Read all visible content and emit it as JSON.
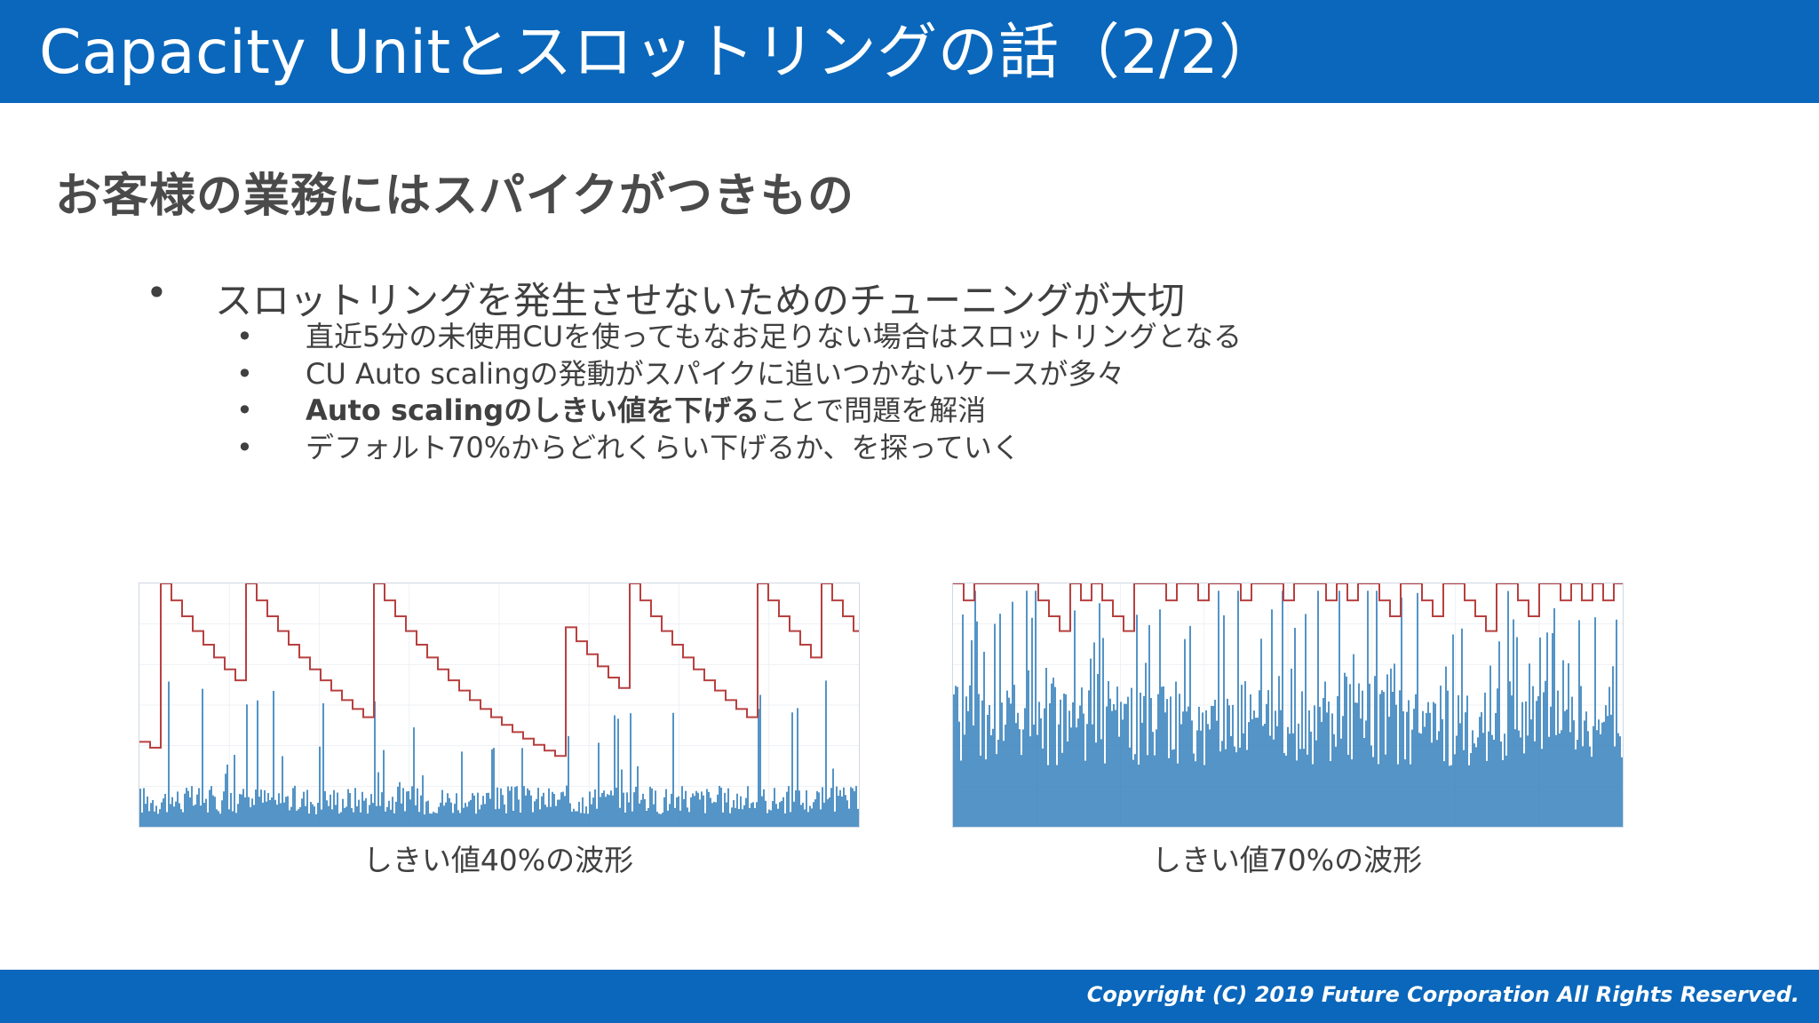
{
  "header": {
    "title": "Capacity Unitとスロットリングの話（2/2）"
  },
  "subtitle": "お客様の業務にはスパイクがつきもの",
  "bullet_main": {
    "marker": "•",
    "text": "スロットリングを発生させないためのチューニングが大切"
  },
  "sub_bullets": [
    {
      "marker": "•",
      "text": "直近5分の未使用CUを使ってもなお足りない場合はスロットリングとなる"
    },
    {
      "marker": "•",
      "text": "CU Auto scalingの発動がスパイクに追いつかないケースが多々"
    },
    {
      "marker": "•",
      "bold": "Auto scalingのしきい値を下げる",
      "rest": "ことで問題を解消"
    },
    {
      "marker": "•",
      "text": "デフォルト70%からどれくらい下げるか、を探っていく"
    }
  ],
  "charts": [
    {
      "caption": "しきい値40%の波形",
      "threshold": 40
    },
    {
      "caption": "しきい値70%の波形",
      "threshold": 70
    }
  ],
  "colors": {
    "accent": "#0a67bb",
    "consumed": "#2a7ab8",
    "provisioned": "#b84040"
  },
  "footer": {
    "copyright": "Copyright (C) 2019 Future Corporation All Rights Reserved."
  }
}
